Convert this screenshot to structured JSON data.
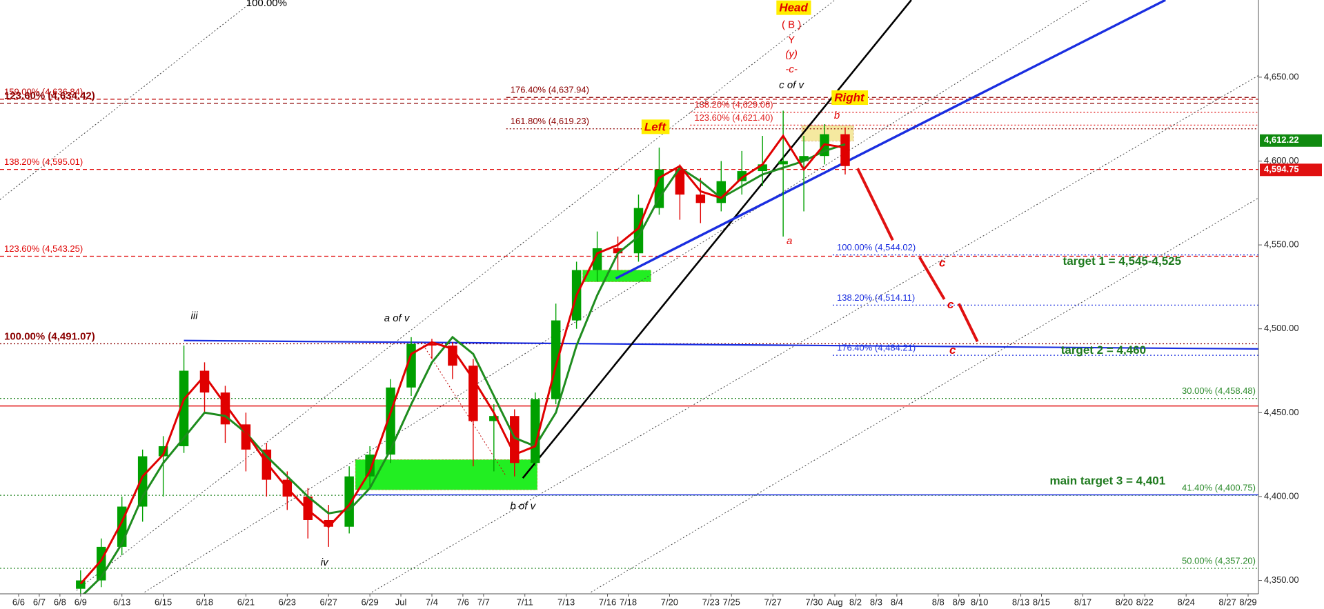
{
  "chart_data": {
    "type": "candlestick",
    "x": [
      3,
      4,
      5,
      6,
      7,
      8,
      9,
      10,
      11,
      12,
      13,
      14,
      15,
      16,
      17,
      18,
      19,
      20,
      21,
      22,
      23,
      24,
      25,
      26,
      27,
      28,
      29,
      30,
      31,
      32,
      33,
      34,
      35,
      36,
      37,
      38,
      39,
      40
    ],
    "open": [
      4345,
      4350,
      4370,
      4394,
      4424,
      4430,
      4475,
      4462,
      4443,
      4428,
      4410,
      4400,
      4386,
      4382,
      4412,
      4425,
      4465,
      4491,
      4490,
      4478,
      4445,
      4448,
      4420,
      4458,
      4505,
      4535,
      4548,
      4545,
      4572,
      4595,
      4580,
      4575,
      4588,
      4594,
      4598,
      4600,
      4603,
      4616
    ],
    "high": [
      4356,
      4375,
      4400,
      4428,
      4436,
      4490,
      4480,
      4466,
      4450,
      4432,
      4415,
      4405,
      4395,
      4418,
      4430,
      4470,
      4495,
      4494,
      4492,
      4482,
      4455,
      4452,
      4462,
      4515,
      4540,
      4558,
      4555,
      4580,
      4608,
      4598,
      4590,
      4600,
      4606,
      4615,
      4630,
      4615,
      4622,
      4620
    ],
    "low": [
      4340,
      4346,
      4365,
      4385,
      4400,
      4426,
      4450,
      4432,
      4415,
      4400,
      4392,
      4375,
      4370,
      4378,
      4405,
      4420,
      4460,
      4482,
      4470,
      4418,
      4415,
      4412,
      4418,
      4455,
      4500,
      4528,
      4535,
      4540,
      4568,
      4565,
      4563,
      4570,
      4580,
      4585,
      4555,
      4570,
      4598,
      4592
    ],
    "close": [
      4350,
      4370,
      4394,
      4424,
      4430,
      4475,
      4462,
      4443,
      4428,
      4410,
      4400,
      4386,
      4382,
      4412,
      4425,
      4465,
      4491,
      4490,
      4478,
      4445,
      4448,
      4420,
      4458,
      4505,
      4535,
      4548,
      4545,
      4572,
      4595,
      4580,
      4575,
      4588,
      4594,
      4598,
      4600,
      4603,
      4616,
      4597
    ],
    "up_color": "#00a000",
    "down_color": "#e00000",
    "lines": [
      {
        "color": "#1e8c1e",
        "values": [
          4340,
          4352,
          4372,
          4400,
          4420,
          4435,
          4450,
          4448,
          4438,
          4424,
          4412,
          4400,
          4390,
          4392,
          4405,
          4428,
          4455,
          4480,
          4495,
          4485,
          4460,
          4435,
          4430,
          4450,
          4490,
          4520,
          4545,
          4555,
          4578,
          4596,
          4588,
          4578,
          4585,
          4592,
          4596,
          4600,
          4606,
          4610
        ]
      },
      {
        "color": "#e00000",
        "values": [
          4348,
          4362,
          4385,
          4412,
          4425,
          4458,
          4472,
          4455,
          4438,
          4420,
          4405,
          4392,
          4382,
          4395,
          4415,
          4450,
          4485,
          4492,
          4488,
          4470,
          4450,
          4425,
          4430,
          4478,
          4520,
          4545,
          4550,
          4560,
          4590,
          4597,
          4582,
          4578,
          4590,
          4598,
          4615,
          4595,
          4610,
          4608
        ]
      }
    ],
    "xlim": [
      -0.9,
      60
    ],
    "xticks": [
      {
        "value": 0,
        "label": "6/6"
      },
      {
        "value": 1,
        "label": "6/7"
      },
      {
        "value": 2,
        "label": "6/8"
      },
      {
        "value": 3,
        "label": "6/9"
      },
      {
        "value": 5,
        "label": "6/13"
      },
      {
        "value": 7,
        "label": "6/15"
      },
      {
        "value": 9,
        "label": "6/18"
      },
      {
        "value": 11,
        "label": "6/21"
      },
      {
        "value": 13,
        "label": "6/23"
      },
      {
        "value": 15,
        "label": "6/27"
      },
      {
        "value": 17,
        "label": "6/29"
      },
      {
        "value": 18.5,
        "label": "Jul"
      },
      {
        "value": 20,
        "label": "7/4"
      },
      {
        "value": 21.5,
        "label": "7/6"
      },
      {
        "value": 22.5,
        "label": "7/7"
      },
      {
        "value": 24.5,
        "label": "7/11"
      },
      {
        "value": 26.5,
        "label": "7/13"
      },
      {
        "value": 28.5,
        "label": "7/16"
      },
      {
        "value": 29.5,
        "label": "7/18"
      },
      {
        "value": 31.5,
        "label": "7/20"
      },
      {
        "value": 33.5,
        "label": "7/23"
      },
      {
        "value": 34.5,
        "label": "7/25"
      },
      {
        "value": 36.5,
        "label": "7/27"
      },
      {
        "value": 38.5,
        "label": "7/30"
      },
      {
        "value": 39.5,
        "label": "Aug"
      },
      {
        "value": 40.5,
        "label": "8/2"
      },
      {
        "value": 41.5,
        "label": "8/3"
      },
      {
        "value": 42.5,
        "label": "8/4"
      },
      {
        "value": 44.5,
        "label": "8/8"
      },
      {
        "value": 45.5,
        "label": "8/9"
      },
      {
        "value": 46.5,
        "label": "8/10"
      },
      {
        "value": 48.5,
        "label": "8/13"
      },
      {
        "value": 49.5,
        "label": "8/15"
      },
      {
        "value": 51.5,
        "label": "8/17"
      },
      {
        "value": 53.5,
        "label": "8/20"
      },
      {
        "value": 54.5,
        "label": "8/22"
      },
      {
        "value": 56.5,
        "label": "8/24"
      },
      {
        "value": 58.5,
        "label": "8/27"
      },
      {
        "value": 59.5,
        "label": "8/29"
      }
    ],
    "ylim": [
      4342,
      4696
    ],
    "yticks": [
      {
        "value": 4350,
        "label": "4,350.00"
      },
      {
        "value": 4400,
        "label": "4,400.00"
      },
      {
        "value": 4450,
        "label": "4,450.00"
      },
      {
        "value": 4500,
        "label": "4,500.00"
      },
      {
        "value": 4550,
        "label": "4,550.00"
      },
      {
        "value": 4600,
        "label": "4,600.00"
      },
      {
        "value": 4650,
        "label": "4,650.00"
      }
    ],
    "price_tags": [
      {
        "value": 4612.22,
        "label": "4,612.22",
        "color": "#108a10"
      },
      {
        "value": 4594.75,
        "label": "4,594.75",
        "color": "#e01010"
      }
    ],
    "levels": [
      {
        "label": "159.00% (4,636.84)",
        "value": 4636.84,
        "color": "#c00000",
        "style": "dashed",
        "side": "left"
      },
      {
        "label": "123.60% (4,634.42)",
        "value": 4634.42,
        "color": "#8b0000",
        "style": "dashed",
        "side": "left",
        "bold": true
      },
      {
        "label": "176.40% (4,637.94)",
        "value": 4637.94,
        "color": "#8b0000",
        "style": "dashed",
        "side": "left",
        "x": [
          23.6,
          60
        ]
      },
      {
        "label": "161.80% (4,619.23)",
        "value": 4619.23,
        "color": "#8b0000",
        "style": "dotted",
        "side": "left",
        "x": [
          23.6,
          60
        ]
      },
      {
        "label": "138.20% (4,629.06)",
        "value": 4629.06,
        "color": "#e02020",
        "style": "dotted",
        "side": "left",
        "x": [
          32.5,
          60
        ]
      },
      {
        "label": "123.60% (4,621.40)",
        "value": 4621.4,
        "color": "#e02020",
        "style": "dotted",
        "side": "left",
        "x": [
          32.5,
          60
        ]
      },
      {
        "label": "138.20% (4,595.01)",
        "value": 4595.01,
        "color": "#e00000",
        "style": "dashed",
        "side": "left"
      },
      {
        "label": "123.60% (4,543.25)",
        "value": 4543.25,
        "color": "#e00000",
        "style": "dashed",
        "side": "left"
      },
      {
        "label": "100.00% (4,491.07)",
        "value": 4491.07,
        "color": "#8b0000",
        "style": "dotted",
        "side": "left",
        "bold": true
      },
      {
        "label": "100.00% (4,544.02)",
        "value": 4544.02,
        "color": "#1a2ee0",
        "style": "dotted",
        "side": "left",
        "x": [
          39.4,
          60
        ]
      },
      {
        "label": "138.20% (4,514.11)",
        "value": 4514.11,
        "color": "#1a2ee0",
        "style": "dotted",
        "side": "left",
        "x": [
          39.4,
          60
        ]
      },
      {
        "label": "176.40% (4,484.21)",
        "value": 4484.21,
        "color": "#1a2ee0",
        "style": "dotted",
        "side": "left",
        "x": [
          39.4,
          60
        ]
      },
      {
        "label": "30.00% (4,458.48)",
        "value": 4458.48,
        "color": "#2a8a2a",
        "style": "dotted",
        "side": "right"
      },
      {
        "label": "41.40% (4,400.75)",
        "value": 4400.75,
        "color": "#2a8a2a",
        "style": "dotted",
        "side": "right"
      },
      {
        "label": "50.00% (4,357.20)",
        "value": 4357.2,
        "color": "#2a8a2a",
        "style": "dotted",
        "side": "right"
      }
    ],
    "trendlines": [
      {
        "x": [
          -0.9,
          11.4
        ],
        "y": [
          4577,
          4696
        ],
        "color": "#444444",
        "style": "dotted",
        "width": 1
      },
      {
        "x": [
          2.8,
          39.5
        ],
        "y": [
          4344,
          4696
        ],
        "color": "#444444",
        "style": "dotted",
        "width": 1
      },
      {
        "x": [
          6.1,
          51.8
        ],
        "y": [
          4343,
          4696
        ],
        "color": "#444444",
        "style": "dotted",
        "width": 1
      },
      {
        "x": [
          17.1,
          60
        ],
        "y": [
          4343,
          4651
        ],
        "color": "#444444",
        "style": "dotted",
        "width": 1
      },
      {
        "x": [
          27.7,
          60
        ],
        "y": [
          4343,
          4578
        ],
        "color": "#444444",
        "style": "dotted",
        "width": 1
      },
      {
        "x": [
          -0.9,
          60
        ],
        "y": [
          4454,
          4454
        ],
        "color": "#e01010",
        "style": "solid",
        "width": 1.5
      },
      {
        "x": [
          8,
          60
        ],
        "y": [
          4493,
          4488
        ],
        "color": "#1a2ee0",
        "style": "solid",
        "width": 2.2
      },
      {
        "x": [
          16.3,
          60
        ],
        "y": [
          4401,
          4401
        ],
        "color": "#1a2ee0",
        "style": "solid",
        "width": 1.6
      },
      {
        "x": [
          19.5,
          23.6
        ],
        "y": [
          4492,
          4412
        ],
        "color": "#c00000",
        "style": "dotted",
        "width": 1
      },
      {
        "x": [
          24.4,
          43.2
        ],
        "y": [
          4411,
          4696
        ],
        "color": "#000000",
        "style": "solid",
        "width": 2.6
      },
      {
        "x": [
          28.9,
          55.5
        ],
        "y": [
          4530,
          4696
        ],
        "color": "#1a2ee0",
        "style": "solid",
        "width": 3.4
      }
    ],
    "zones": [
      {
        "x": [
          27.3,
          30.6
        ],
        "y": [
          4528,
          4535
        ],
        "color": "#22ee22"
      },
      {
        "x": [
          16.3,
          25.1
        ],
        "y": [
          4404,
          4422
        ],
        "color": "#22ee22"
      },
      {
        "x": [
          37.9,
          40.4
        ],
        "y": [
          4612,
          4621
        ],
        "color": "#f5e9a0"
      }
    ],
    "projection": {
      "x": [
        40.6,
        42.3,
        null,
        43.6,
        44.8,
        null,
        45.5,
        46.4
      ],
      "y": [
        4595.6,
        4552.8,
        null,
        4542.7,
        4517.6,
        null,
        4515,
        4492.4
      ],
      "color": "#e01010"
    },
    "annotations": [
      {
        "text": "100.00%",
        "x": 12,
        "y": 4694,
        "color": "#000000"
      },
      {
        "text": "iii",
        "x": 8.5,
        "y": 4507.5,
        "color": "#000000",
        "italic": true
      },
      {
        "text": "a of v",
        "x": 18.3,
        "y": 4506,
        "color": "#000000",
        "italic": true
      },
      {
        "text": "iv",
        "x": 14.8,
        "y": 4360.5,
        "color": "#000000",
        "italic": true
      },
      {
        "text": "b of v",
        "x": 24.4,
        "y": 4394,
        "color": "#000000",
        "italic": true
      },
      {
        "text": "c of v",
        "x": 37.4,
        "y": 4645,
        "color": "#000000",
        "italic": true
      },
      {
        "text": "Head",
        "x": 37.5,
        "y": 4691,
        "color": "#e00000",
        "italic": true,
        "bold": true,
        "background": "#ffee00"
      },
      {
        "text": "( B )",
        "x": 37.4,
        "y": 4681,
        "color": "#e00000"
      },
      {
        "text": "Y",
        "x": 37.4,
        "y": 4672,
        "color": "#e00000"
      },
      {
        "text": "(y)",
        "x": 37.4,
        "y": 4663.6,
        "color": "#e00000",
        "italic": true
      },
      {
        "text": "-c-",
        "x": 37.4,
        "y": 4654.5,
        "color": "#e00000",
        "italic": true
      },
      {
        "text": "Left",
        "x": 30.8,
        "y": 4620,
        "color": "#e00000",
        "italic": true,
        "bold": true,
        "background": "#ffee00"
      },
      {
        "text": "Right",
        "x": 40.2,
        "y": 4637.4,
        "color": "#e00000",
        "italic": true,
        "bold": true,
        "background": "#ffee00"
      },
      {
        "text": "b",
        "x": 39.6,
        "y": 4627,
        "color": "#e00000",
        "italic": true
      },
      {
        "text": "a",
        "x": 37.3,
        "y": 4552,
        "color": "#e00000",
        "italic": true
      },
      {
        "text": "c",
        "x": 44.7,
        "y": 4539,
        "color": "#e00000",
        "italic": true,
        "bold": true
      },
      {
        "text": "c",
        "x": 45.1,
        "y": 4514,
        "color": "#e00000",
        "italic": true,
        "bold": true
      },
      {
        "text": "c",
        "x": 45.2,
        "y": 4487,
        "color": "#e00000",
        "italic": true,
        "bold": true
      },
      {
        "text": "target 1 = 4,545-4,525",
        "x": 53.4,
        "y": 4540,
        "color": "#1e7a1e",
        "bold": true
      },
      {
        "text": "target 2 = 4,460",
        "x": 52.5,
        "y": 4487,
        "color": "#1e7a1e",
        "bold": true
      },
      {
        "text": "main target 3 = 4,401",
        "x": 52.7,
        "y": 4409,
        "color": "#1e7a1e",
        "bold": true
      }
    ]
  }
}
